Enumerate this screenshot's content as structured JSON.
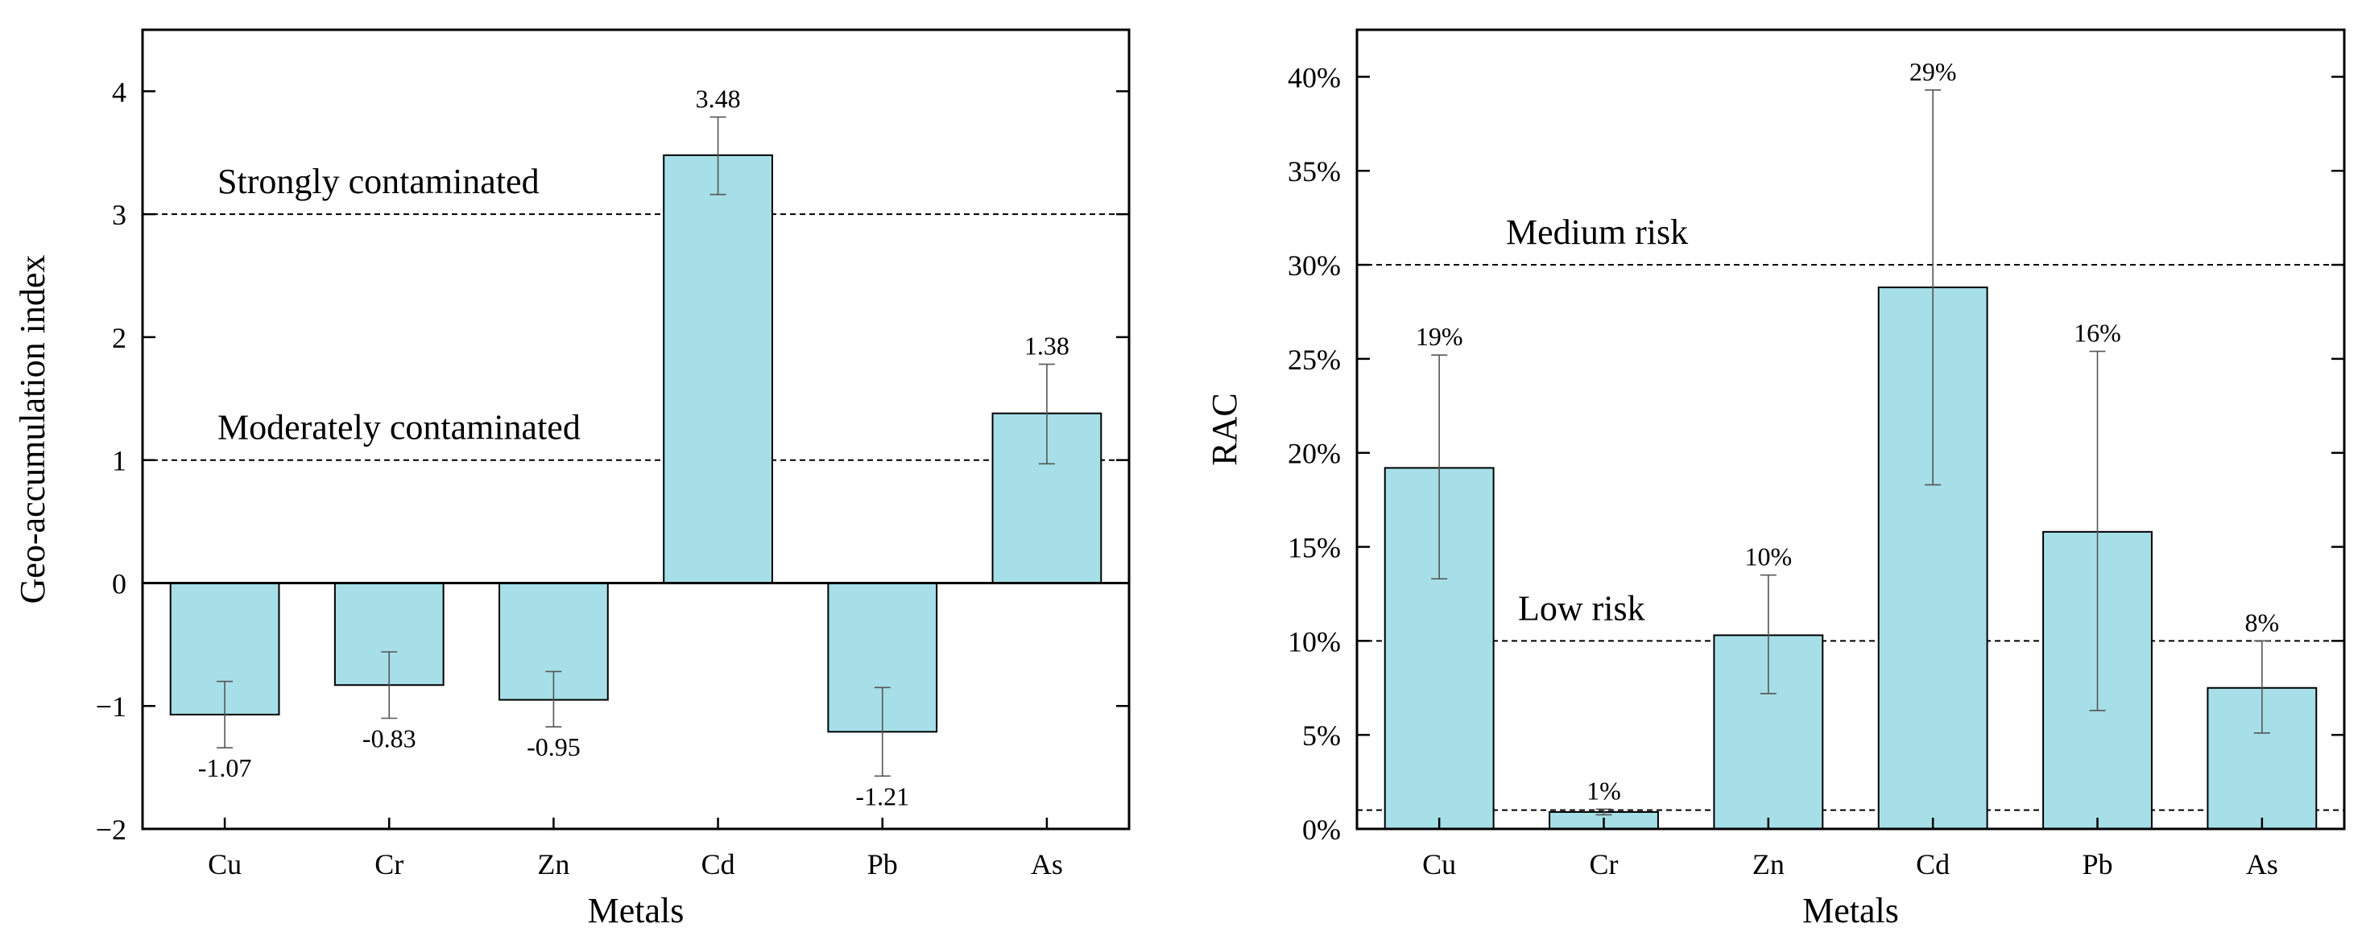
{
  "colors": {
    "bar_fill": "#a6dfe8",
    "bar_edge": "#000000",
    "axis": "#000000"
  },
  "chart_data": [
    {
      "type": "bar",
      "categories": [
        "Cu",
        "Cr",
        "Zn",
        "Cd",
        "Pb",
        "As"
      ],
      "values": [
        -1.07,
        -0.83,
        -0.95,
        3.48,
        -1.21,
        1.38
      ],
      "value_labels": [
        "-1.07",
        "-0.83",
        "-0.95",
        "3.48",
        "-1.21",
        "1.38"
      ],
      "error_low": [
        -1.34,
        -1.1,
        -1.17,
        3.16,
        -1.57,
        0.97
      ],
      "error_high": [
        -0.8,
        -0.56,
        -0.72,
        3.79,
        -0.85,
        1.78
      ],
      "xlabel": "Metals",
      "ylabel": "Geo-accumulation index",
      "ylim": [
        -2,
        4.5
      ],
      "yticks": [
        -2,
        -1,
        0,
        1,
        2,
        3,
        4
      ],
      "ytick_labels": [
        "−2",
        "−1",
        "0",
        "1",
        "2",
        "3",
        "4"
      ],
      "reference_lines": [
        {
          "value": 3,
          "label": "Strongly contaminated"
        },
        {
          "value": 1,
          "label": "Moderately contaminated"
        }
      ],
      "zero_line": true
    },
    {
      "type": "bar",
      "categories": [
        "Cu",
        "Cr",
        "Zn",
        "Cd",
        "Pb",
        "As"
      ],
      "values": [
        19.2,
        0.9,
        10.3,
        28.8,
        15.8,
        7.5
      ],
      "value_labels": [
        "19%",
        "1%",
        "10%",
        "29%",
        "16%",
        "8%"
      ],
      "error_low": [
        13.3,
        0.75,
        7.2,
        18.3,
        6.3,
        5.1
      ],
      "error_high": [
        25.2,
        1.05,
        13.5,
        39.3,
        25.4,
        10.0
      ],
      "xlabel": "Metals",
      "ylabel": "RAC",
      "ylim": [
        0,
        42.5
      ],
      "yticks": [
        0,
        5,
        10,
        15,
        20,
        25,
        30,
        35,
        40
      ],
      "ytick_labels": [
        "0%",
        "5%",
        "10%",
        "15%",
        "20%",
        "25%",
        "30%",
        "35%",
        "40%"
      ],
      "reference_lines": [
        {
          "value": 30,
          "label": "Medium risk"
        },
        {
          "value": 10,
          "label": "Low risk"
        },
        {
          "value": 1,
          "label": ""
        }
      ],
      "zero_line": false
    }
  ]
}
